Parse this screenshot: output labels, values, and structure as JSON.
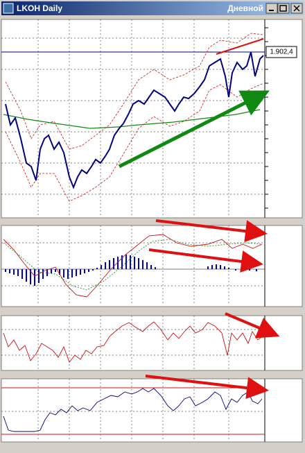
{
  "window": {
    "title": "LKOH Daily",
    "tab": "Дневной",
    "price_tag": "1.902,4"
  }
}
